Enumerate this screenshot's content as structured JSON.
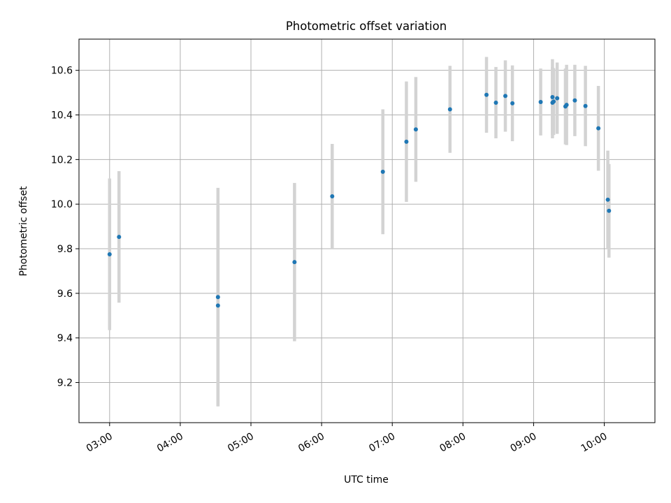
{
  "chart_data": {
    "type": "scatter",
    "title": "Photometric offset variation",
    "xlabel": "UTC time",
    "ylabel": "Photometric offset",
    "x_is_time": true,
    "xlim": [
      "02:34",
      "10:43"
    ],
    "ylim": [
      9.02,
      10.74
    ],
    "x_ticks": [
      "03:00",
      "04:00",
      "05:00",
      "06:00",
      "07:00",
      "08:00",
      "09:00",
      "10:00"
    ],
    "y_ticks": [
      9.2,
      9.4,
      9.6,
      9.8,
      10.0,
      10.2,
      10.4,
      10.6
    ],
    "grid": true,
    "colors": {
      "point": "#1f77b4",
      "errorbar": "#d3d3d3",
      "grid": "#b0b0b0"
    },
    "points": [
      {
        "x": "03:00",
        "y": 9.775,
        "err": 0.34
      },
      {
        "x": "03:08",
        "y": 9.853,
        "err": 0.295
      },
      {
        "x": "04:32",
        "y": 9.583,
        "err": 0.49
      },
      {
        "x": "04:32",
        "y": 9.545,
        "err": 0.45
      },
      {
        "x": "05:37",
        "y": 9.74,
        "err": 0.355
      },
      {
        "x": "06:09",
        "y": 10.035,
        "err": 0.235
      },
      {
        "x": "06:52",
        "y": 10.145,
        "err": 0.28
      },
      {
        "x": "07:12",
        "y": 10.28,
        "err": 0.27
      },
      {
        "x": "07:20",
        "y": 10.335,
        "err": 0.235
      },
      {
        "x": "07:49",
        "y": 10.425,
        "err": 0.195
      },
      {
        "x": "08:20",
        "y": 10.49,
        "err": 0.17
      },
      {
        "x": "08:28",
        "y": 10.455,
        "err": 0.16
      },
      {
        "x": "08:36",
        "y": 10.485,
        "err": 0.16
      },
      {
        "x": "08:42",
        "y": 10.452,
        "err": 0.17
      },
      {
        "x": "09:06",
        "y": 10.458,
        "err": 0.15
      },
      {
        "x": "09:16",
        "y": 10.48,
        "err": 0.17
      },
      {
        "x": "09:16",
        "y": 10.455,
        "err": 0.16
      },
      {
        "x": "09:17",
        "y": 10.46,
        "err": 0.15
      },
      {
        "x": "09:20",
        "y": 10.475,
        "err": 0.16
      },
      {
        "x": "09:27",
        "y": 10.438,
        "err": 0.17
      },
      {
        "x": "09:28",
        "y": 10.445,
        "err": 0.18
      },
      {
        "x": "09:35",
        "y": 10.465,
        "err": 0.16
      },
      {
        "x": "09:44",
        "y": 10.44,
        "err": 0.18
      },
      {
        "x": "09:55",
        "y": 10.34,
        "err": 0.19
      },
      {
        "x": "10:03",
        "y": 10.02,
        "err": 0.22
      },
      {
        "x": "10:04",
        "y": 9.97,
        "err": 0.21
      }
    ]
  }
}
